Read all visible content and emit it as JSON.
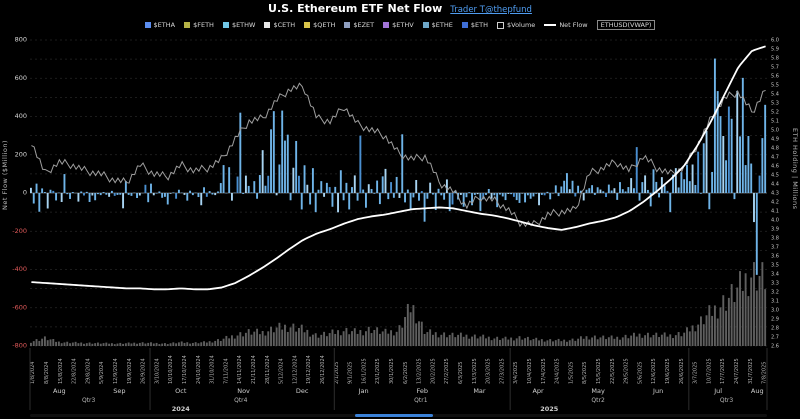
{
  "title": "U.S. Ethereum ETF Net Flow",
  "link": "Trader T@thepfund",
  "legend": {
    "items": [
      {
        "label": "$ETHA",
        "color": "#5b8def",
        "type": "swatch"
      },
      {
        "label": "$FETH",
        "color": "#b5b246",
        "type": "swatch"
      },
      {
        "label": "$ETHW",
        "color": "#72c7e7",
        "type": "swatch"
      },
      {
        "label": "$CETH",
        "color": "#e8e8e8",
        "type": "swatch"
      },
      {
        "label": "$QETH",
        "color": "#d9c44a",
        "type": "swatch"
      },
      {
        "label": "$EZET",
        "color": "#8f9fc0",
        "type": "swatch"
      },
      {
        "label": "$ETHV",
        "color": "#a274d8",
        "type": "swatch"
      },
      {
        "label": "$ETHE",
        "color": "#6fa8c9",
        "type": "swatch"
      },
      {
        "label": "$ETH",
        "color": "#3f6fd8",
        "type": "swatch"
      },
      {
        "label": "$Volume",
        "color": "#cfcfcf",
        "type": "outline"
      },
      {
        "label": "Net Flow",
        "color": "#ffffff",
        "type": "line"
      },
      {
        "label": "ETHUSD(VWAP)",
        "color": "#e8e8e8",
        "type": "box"
      }
    ]
  },
  "chart_data": {
    "type": "composite",
    "left_axis": {
      "title": "Net Flow ($Million)",
      "min": -800,
      "max": 800,
      "grid_step": 100,
      "label_step": 200,
      "pos_color": "#d6d6d6",
      "neg_color": "#e05a5a"
    },
    "right_axis": {
      "title": "ETH Holding | Millions",
      "min": 2.6,
      "max": 6.0,
      "label_step": 0.1,
      "color": "#c9c9c9"
    },
    "x_tick_labels": [
      "1/8/2024",
      "8/8/2024",
      "15/8/2024",
      "22/8/2024",
      "29/8/2024",
      "5/9/2024",
      "12/9/2024",
      "19/9/2024",
      "26/9/2024",
      "3/10/2024",
      "10/10/2024",
      "17/10/2024",
      "24/10/2024",
      "31/10/2024",
      "7/11/2024",
      "14/11/2024",
      "21/11/2024",
      "28/11/2024",
      "5/12/2024",
      "12/12/2024",
      "19/12/2024",
      "26/12/2024",
      "2/1/2025",
      "9/1/2025",
      "16/1/2025",
      "23/1/2025",
      "30/1/2025",
      "6/2/2025",
      "13/2/2025",
      "20/2/2025",
      "27/2/2025",
      "6/3/2025",
      "13/3/2025",
      "20/3/2025",
      "27/3/2025",
      "3/4/2025",
      "10/4/2025",
      "17/4/2025",
      "24/4/2025",
      "1/5/2025",
      "8/5/2025",
      "15/5/2025",
      "22/5/2025",
      "29/5/2025",
      "5/6/2025",
      "12/6/2025",
      "19/6/2025",
      "26/6/2025",
      "3/7/2025",
      "10/7/2025",
      "17/7/2025",
      "24/7/2025",
      "31/7/2025",
      "7/8/2025"
    ],
    "months": [
      {
        "label": "Aug",
        "day": 10.5
      },
      {
        "label": "Sep",
        "day": 32
      },
      {
        "label": "Oct",
        "day": 54
      },
      {
        "label": "Nov",
        "day": 76.5
      },
      {
        "label": "Dec",
        "day": 97.5
      },
      {
        "label": "Jan",
        "day": 119.5
      },
      {
        "label": "Feb",
        "day": 140.5
      },
      {
        "label": "Mar",
        "day": 161
      },
      {
        "label": "Apr",
        "day": 182
      },
      {
        "label": "May",
        "day": 203.5
      },
      {
        "label": "Jun",
        "day": 225
      },
      {
        "label": "Jul",
        "day": 246.5
      },
      {
        "label": "Aug",
        "day": 260.5
      }
    ],
    "quarters": [
      {
        "label": "Qtr3",
        "day": 21
      },
      {
        "label": "Qtr4",
        "day": 75.5
      },
      {
        "label": "Qtr1",
        "day": 140
      },
      {
        "label": "Qtr2",
        "day": 203.5
      },
      {
        "label": "Qtr3",
        "day": 249.5
      }
    ],
    "years": [
      {
        "label": "2024",
        "day": 54
      },
      {
        "label": "2025",
        "day": 186
      }
    ],
    "series": [
      {
        "name": "Net Flow (daily, all ETFs)",
        "key": "net_flow",
        "type": "bar",
        "axis": "left",
        "unit": "$Million",
        "color": "#6fb4e8",
        "values": [
          27,
          -55,
          49,
          -98,
          24,
          5,
          -81,
          17,
          11,
          -39,
          2,
          -47,
          99,
          -6,
          -31,
          5,
          -1,
          -45,
          8,
          -13,
          6,
          -47,
          -13,
          -38,
          -6,
          -11,
          5,
          -9,
          -20,
          11,
          -15,
          -10,
          -9,
          -80,
          63,
          -10,
          -15,
          2,
          -26,
          -13,
          -1,
          43,
          -48,
          49,
          -12,
          -3,
          8,
          -25,
          -20,
          -60,
          -4,
          3,
          -30,
          17,
          2,
          -10,
          -40,
          12,
          -11,
          2,
          -21,
          -64,
          30,
          -20,
          10,
          -8,
          -11,
          8,
          52,
          146,
          -2,
          135,
          -40,
          2,
          86,
          420,
          -5,
          91,
          37,
          3,
          62,
          -30,
          94,
          224,
          38,
          90,
          333,
          428,
          -12,
          149,
          431,
          274,
          305,
          -38,
          132,
          272,
          90,
          -86,
          145,
          43,
          -60,
          130,
          -100,
          17,
          62,
          -20,
          53,
          31,
          -72,
          32,
          -101,
          119,
          -38,
          53,
          -86,
          31,
          92,
          -40,
          300,
          18,
          -77,
          46,
          21,
          -4,
          65,
          -58,
          87,
          126,
          -32,
          57,
          -25,
          84,
          -26,
          307,
          -49,
          18,
          -90,
          -23,
          68,
          -40,
          10,
          -150,
          -30,
          54,
          -8,
          -89,
          22,
          -12,
          -35,
          71,
          -95,
          -60,
          12,
          -34,
          -10,
          -72,
          -22,
          4,
          -64,
          -10,
          -6,
          -94,
          -33,
          -10,
          21,
          -30,
          -12,
          -74,
          -8,
          -18,
          -37,
          -5,
          -6,
          -20,
          -37,
          -52,
          -3,
          -49,
          -12,
          -30,
          -18,
          -4,
          -64,
          -10,
          -12,
          6,
          -33,
          -2,
          40,
          -16,
          34,
          64,
          104,
          20,
          64,
          -18,
          38,
          12,
          -39,
          17,
          25,
          41,
          -10,
          30,
          18,
          9,
          -21,
          44,
          13,
          25,
          -36,
          57,
          20,
          8,
          31,
          78,
          25,
          240,
          -40,
          57,
          92,
          16,
          -70,
          124,
          58,
          -23,
          83,
          40,
          11,
          -100,
          96,
          130,
          29,
          109,
          72,
          148,
          62,
          149,
          42,
          216,
          -4,
          260,
          325,
          -85,
          110,
          703,
          533,
          402,
          298,
          171,
          452,
          388,
          -32,
          534,
          296,
          602,
          146,
          298,
          154,
          -152,
          -428,
          91,
          287,
          461
        ]
      },
      {
        "name": "Volume",
        "key": "volume",
        "type": "bar",
        "color": "#5f5f5f",
        "max_scale": 5000,
        "weekly_values": [
          300,
          520,
          260,
          220,
          200,
          180,
          160,
          170,
          210,
          190,
          160,
          230,
          200,
          260,
          420,
          700,
          900,
          850,
          1150,
          1300,
          1100,
          700,
          800,
          1000,
          900,
          1100,
          850,
          950,
          2600,
          900,
          800,
          700,
          650,
          600,
          520,
          480,
          560,
          420,
          380,
          360,
          420,
          620,
          560,
          520,
          640,
          760,
          700,
          660,
          800,
          1400,
          2200,
          2900,
          3600,
          4600,
          4200
        ]
      },
      {
        "name": "ETH Holding",
        "key": "eth_holding",
        "type": "line",
        "axis": "right",
        "unit": "Millions ETH",
        "color": "#ffffff",
        "weekly_values": [
          3.31,
          3.3,
          3.29,
          3.28,
          3.27,
          3.26,
          3.25,
          3.24,
          3.24,
          3.23,
          3.23,
          3.24,
          3.23,
          3.23,
          3.25,
          3.3,
          3.38,
          3.47,
          3.57,
          3.68,
          3.78,
          3.85,
          3.9,
          3.96,
          4.01,
          4.04,
          4.06,
          4.09,
          4.12,
          4.13,
          4.14,
          4.13,
          4.1,
          4.07,
          4.05,
          4.02,
          3.98,
          3.94,
          3.91,
          3.89,
          3.92,
          3.96,
          3.99,
          4.03,
          4.1,
          4.2,
          4.32,
          4.45,
          4.6,
          4.83,
          5.1,
          5.4,
          5.7,
          5.88,
          5.93
        ]
      },
      {
        "name": "ETHUSD(VWAP)",
        "key": "eth_price",
        "type": "line",
        "unit": "USD",
        "color": "#9f9f9f",
        "range": [
          1400,
          4400
        ],
        "weekly_values": [
          3000,
          2450,
          2650,
          2600,
          2500,
          2450,
          2350,
          2300,
          2600,
          2450,
          2400,
          2600,
          2500,
          2550,
          2700,
          3050,
          3350,
          3400,
          3700,
          3900,
          3950,
          3400,
          3350,
          3600,
          3300,
          3200,
          3100,
          2800,
          2700,
          2750,
          2300,
          2150,
          1900,
          2050,
          2000,
          1850,
          1600,
          1580,
          1750,
          1800,
          1830,
          2450,
          2550,
          2650,
          2500,
          2750,
          2550,
          2450,
          2550,
          2950,
          3400,
          3750,
          3850,
          3500,
          3900
        ]
      }
    ]
  }
}
